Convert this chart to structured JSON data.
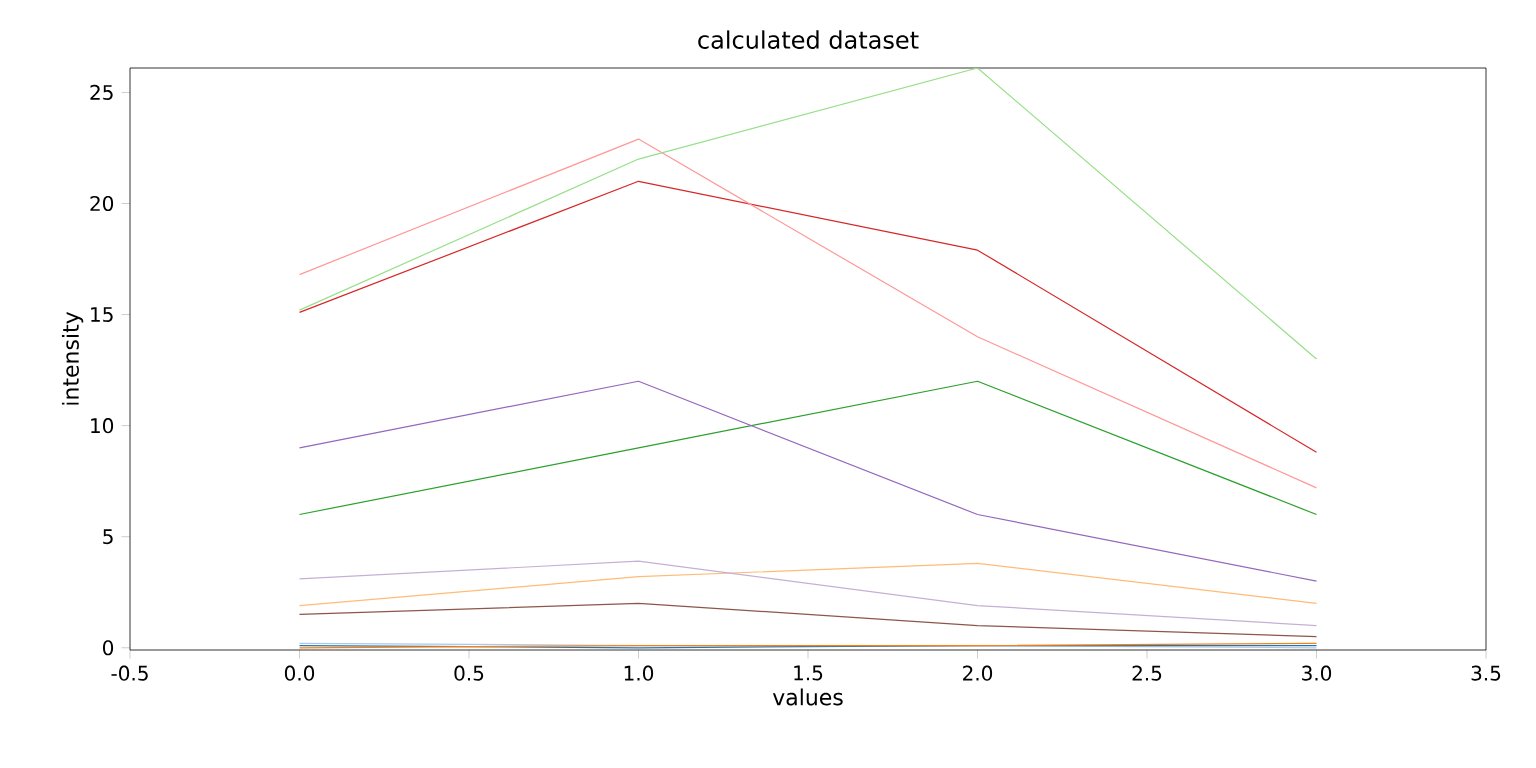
{
  "chart_data": {
    "type": "line",
    "title": "calculated dataset",
    "xlabel": "values",
    "ylabel": "intensity",
    "x": [
      0,
      1,
      2,
      3
    ],
    "xlim": [
      -0.5,
      3.5
    ],
    "xticks": [
      -0.5,
      {
        "value": 0,
        "label": "0.0"
      },
      0.5,
      {
        "value": 1,
        "label": "1.0"
      },
      1.5,
      {
        "value": 2,
        "label": "2.0"
      },
      2.5,
      {
        "value": 3,
        "label": "3.0"
      },
      3.5
    ],
    "ylim": [
      -0.1,
      26.1
    ],
    "yticks": [
      0,
      5,
      10,
      15,
      20,
      25
    ],
    "series": [
      {
        "color": "#aec7e8",
        "values": [
          0.2,
          0.1,
          0.1,
          0.0
        ]
      },
      {
        "color": "#1f77b4",
        "values": [
          0.1,
          0.0,
          0.1,
          0.1
        ]
      },
      {
        "color": "#ff7f0e",
        "values": [
          0.0,
          0.1,
          0.1,
          0.2
        ]
      },
      {
        "color": "#8c564b",
        "values": [
          1.5,
          2.0,
          1.0,
          0.5
        ]
      },
      {
        "color": "#ffbb78",
        "values": [
          1.9,
          3.2,
          3.8,
          2.0
        ]
      },
      {
        "color": "#c5b0d5",
        "values": [
          3.1,
          3.9,
          1.9,
          1.0
        ]
      },
      {
        "color": "#2ca02c",
        "values": [
          6,
          9,
          12,
          6
        ]
      },
      {
        "color": "#9467bd",
        "values": [
          9,
          12,
          6,
          3
        ]
      },
      {
        "color": "#d62728",
        "values": [
          15.1,
          21,
          17.9,
          8.8
        ]
      },
      {
        "color": "#ff9896",
        "values": [
          16.8,
          22.9,
          14,
          7.2
        ]
      },
      {
        "color": "#98df8a",
        "values": [
          15.2,
          22,
          26.1,
          13
        ]
      }
    ]
  }
}
